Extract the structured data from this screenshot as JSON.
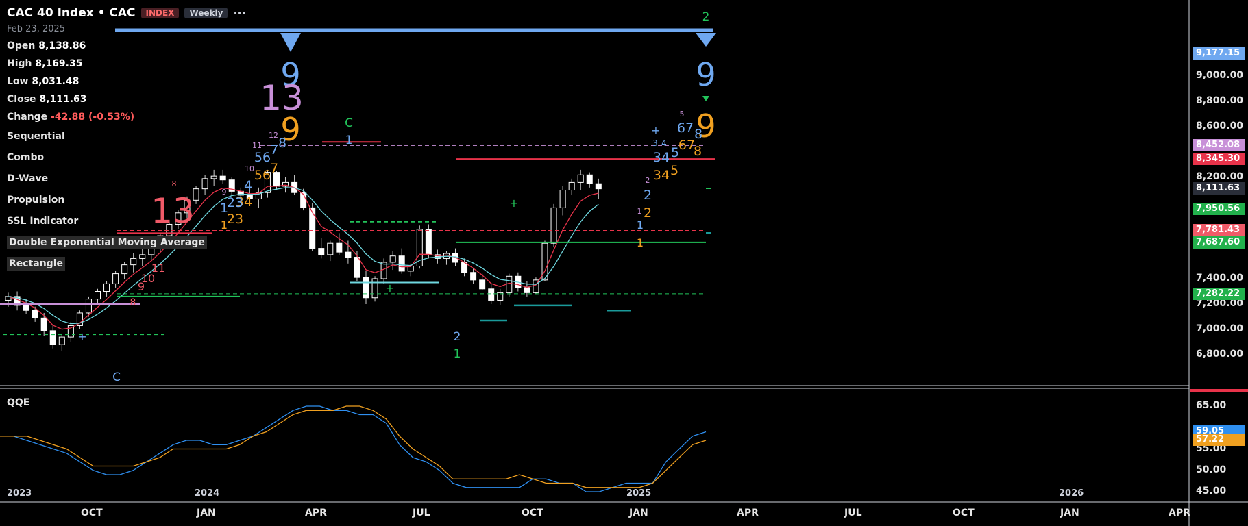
{
  "header": {
    "title": "CAC 40 Index • CAC",
    "badge_type": "INDEX",
    "badge_interval": "Weekly",
    "more": "···",
    "date": "Feb 23, 2025",
    "open_label": "Open",
    "open": "8,138.86",
    "high_label": "High",
    "high": "8,169.35",
    "low_label": "Low",
    "low": "8,031.48",
    "close_label": "Close",
    "close": "8,111.63",
    "change_label": "Change",
    "change": "-42.88 (-0.53%)"
  },
  "indicators": [
    "Sequential",
    "Combo",
    "D-Wave",
    "Propulsion",
    "SSL Indicator",
    "Double Exponential Moving Average",
    "Rectangle"
  ],
  "qqe_label": "QQE",
  "price_axis": {
    "ticks": [
      "9,000.00",
      "8,800.00",
      "8,600.00",
      "8,200.00",
      "7,400.00",
      "7,200.00",
      "7,000.00",
      "6,800.00"
    ],
    "tick_values": [
      9000,
      8800,
      8600,
      8200,
      7400,
      7200,
      7000,
      6800
    ],
    "badges": [
      {
        "text": "9,177.15",
        "value": 9177.15,
        "color": "#6fa8f0"
      },
      {
        "text": "8,452.08",
        "value": 8452.08,
        "color": "#c890d8"
      },
      {
        "text": "8,345.30",
        "value": 8345.3,
        "color": "#e8334a"
      },
      {
        "text": "8,111.63",
        "value": 8111.63,
        "color": "#2a2e39"
      },
      {
        "text": "7,950.56",
        "value": 7950.56,
        "color": "#22b14c"
      },
      {
        "text": "7,781.43",
        "value": 7781.43,
        "color": "#f05a68"
      },
      {
        "text": "7,687.60",
        "value": 7687.6,
        "color": "#22b14c"
      },
      {
        "text": "7,282.22",
        "value": 7282.22,
        "color": "#22b14c"
      }
    ]
  },
  "qqe_axis": {
    "ticks": [
      "65.00",
      "55.00",
      "50.00",
      "45.00"
    ],
    "tick_values": [
      65,
      55,
      50,
      45
    ],
    "badges": [
      {
        "text": "59.05",
        "value": 59.05,
        "color": "#2f8ff0"
      },
      {
        "text": "57.22",
        "value": 57.22,
        "color": "#f0a020"
      }
    ]
  },
  "time_axis": {
    "months": [
      "OCT",
      "JAN",
      "APR",
      "JUL",
      "OCT",
      "JAN",
      "APR",
      "JUL",
      "OCT",
      "JAN",
      "APR"
    ],
    "years": [
      "2023",
      "2024",
      "2025",
      "2026"
    ]
  },
  "chart_data": {
    "type": "candlestick",
    "title": "CAC 40 Index • CAC",
    "interval": "Weekly",
    "ylim": [
      6700,
      9300
    ],
    "series": [
      {
        "name": "CAC",
        "candles": [
          [
            7230,
            7290,
            7180,
            7260
          ],
          [
            7260,
            7300,
            7150,
            7190
          ],
          [
            7190,
            7240,
            7120,
            7150
          ],
          [
            7150,
            7180,
            7060,
            7090
          ],
          [
            7090,
            7130,
            6950,
            6990
          ],
          [
            6990,
            7040,
            6850,
            6880
          ],
          [
            6880,
            6960,
            6830,
            6940
          ],
          [
            6940,
            7060,
            6900,
            7030
          ],
          [
            7030,
            7150,
            7000,
            7130
          ],
          [
            7130,
            7260,
            7100,
            7240
          ],
          [
            7240,
            7320,
            7200,
            7300
          ],
          [
            7300,
            7380,
            7260,
            7360
          ],
          [
            7360,
            7460,
            7330,
            7440
          ],
          [
            7440,
            7530,
            7400,
            7510
          ],
          [
            7510,
            7600,
            7450,
            7560
          ],
          [
            7560,
            7640,
            7500,
            7590
          ],
          [
            7590,
            7680,
            7550,
            7650
          ],
          [
            7650,
            7760,
            7610,
            7740
          ],
          [
            7740,
            7850,
            7700,
            7830
          ],
          [
            7830,
            7940,
            7790,
            7920
          ],
          [
            7920,
            8050,
            7880,
            8020
          ],
          [
            8020,
            8130,
            7990,
            8110
          ],
          [
            8110,
            8220,
            8060,
            8190
          ],
          [
            8190,
            8260,
            8130,
            8210
          ],
          [
            8210,
            8260,
            8150,
            8180
          ],
          [
            8180,
            8200,
            8060,
            8090
          ],
          [
            8090,
            8120,
            8010,
            8060
          ],
          [
            8060,
            8110,
            7990,
            8030
          ],
          [
            8030,
            8120,
            7960,
            8080
          ],
          [
            8080,
            8260,
            8040,
            8240
          ],
          [
            8240,
            8250,
            8100,
            8130
          ],
          [
            8130,
            8200,
            8080,
            8160
          ],
          [
            8160,
            8220,
            8060,
            8080
          ],
          [
            8080,
            8110,
            7940,
            7960
          ],
          [
            7960,
            8000,
            7620,
            7640
          ],
          [
            7640,
            7720,
            7560,
            7590
          ],
          [
            7590,
            7700,
            7540,
            7680
          ],
          [
            7680,
            7760,
            7590,
            7610
          ],
          [
            7610,
            7700,
            7520,
            7570
          ],
          [
            7570,
            7620,
            7380,
            7410
          ],
          [
            7410,
            7460,
            7200,
            7250
          ],
          [
            7250,
            7420,
            7220,
            7400
          ],
          [
            7400,
            7560,
            7360,
            7530
          ],
          [
            7530,
            7620,
            7470,
            7580
          ],
          [
            7580,
            7640,
            7440,
            7460
          ],
          [
            7460,
            7520,
            7420,
            7500
          ],
          [
            7500,
            7820,
            7480,
            7790
          ],
          [
            7790,
            7830,
            7560,
            7590
          ],
          [
            7590,
            7630,
            7520,
            7560
          ],
          [
            7560,
            7620,
            7510,
            7600
          ],
          [
            7600,
            7640,
            7500,
            7530
          ],
          [
            7530,
            7560,
            7420,
            7450
          ],
          [
            7450,
            7480,
            7360,
            7390
          ],
          [
            7390,
            7440,
            7310,
            7320
          ],
          [
            7320,
            7360,
            7200,
            7230
          ],
          [
            7230,
            7320,
            7190,
            7290
          ],
          [
            7290,
            7440,
            7260,
            7420
          ],
          [
            7420,
            7450,
            7300,
            7330
          ],
          [
            7330,
            7380,
            7260,
            7290
          ],
          [
            7290,
            7410,
            7280,
            7390
          ],
          [
            7390,
            7700,
            7380,
            7680
          ],
          [
            7680,
            7990,
            7650,
            7960
          ],
          [
            7960,
            8130,
            7900,
            8100
          ],
          [
            8100,
            8190,
            8060,
            8160
          ],
          [
            8160,
            8260,
            8100,
            8220
          ],
          [
            8220,
            8240,
            8120,
            8150
          ],
          [
            8150,
            8190,
            8030,
            8110
          ]
        ]
      }
    ],
    "qqe": {
      "ylim": [
        40,
        70
      ],
      "series": [
        {
          "name": "fast",
          "color": "#2f8ff0",
          "values": [
            58,
            58,
            57,
            56,
            55,
            54,
            52,
            50,
            49,
            49,
            50,
            52,
            54,
            56,
            57,
            57,
            56,
            56,
            57,
            58,
            60,
            62,
            64,
            65,
            65,
            64,
            64,
            63,
            63,
            61,
            56,
            53,
            52,
            50,
            47,
            46,
            46,
            46,
            46,
            46,
            48,
            48,
            47,
            47,
            45,
            45,
            46,
            47,
            47,
            47,
            52,
            55,
            58,
            59
          ]
        },
        {
          "name": "slow",
          "color": "#f0a020",
          "values": [
            58,
            58,
            58,
            57,
            56,
            55,
            53,
            51,
            51,
            51,
            51,
            52,
            53,
            55,
            55,
            55,
            55,
            55,
            56,
            58,
            59,
            61,
            63,
            64,
            64,
            64,
            65,
            65,
            64,
            62,
            58,
            55,
            53,
            51,
            48,
            48,
            48,
            48,
            48,
            49,
            48,
            47,
            47,
            47,
            46,
            46,
            46,
            46,
            46,
            47,
            50,
            53,
            56,
            57
          ]
        }
      ]
    }
  }
}
